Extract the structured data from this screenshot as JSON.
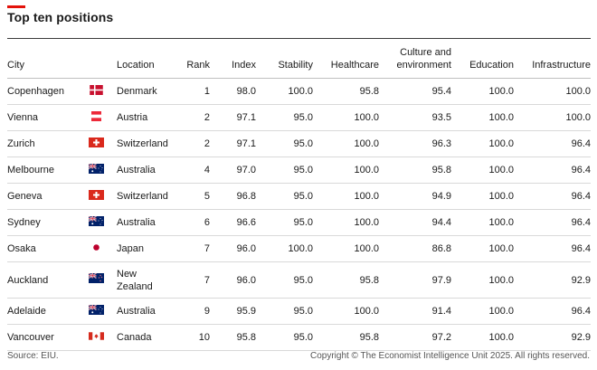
{
  "title": "Top ten positions",
  "columns": {
    "city": "City",
    "location": "Location",
    "rank": "Rank",
    "index": "Index",
    "stability": "Stability",
    "healthcare": "Healthcare",
    "culture_line1": "Culture and",
    "culture_line2": "environment",
    "education": "Education",
    "infrastructure": "Infrastructure"
  },
  "rows": [
    {
      "city": "Copenhagen",
      "flag": "denmark-flag-icon",
      "location": "Denmark",
      "rank": "1",
      "index": "98.0",
      "stability": "100.0",
      "healthcare": "95.8",
      "culture": "95.4",
      "education": "100.0",
      "infrastructure": "100.0"
    },
    {
      "city": "Vienna",
      "flag": "austria-flag-icon",
      "location": "Austria",
      "rank": "2",
      "index": "97.1",
      "stability": "95.0",
      "healthcare": "100.0",
      "culture": "93.5",
      "education": "100.0",
      "infrastructure": "100.0"
    },
    {
      "city": "Zurich",
      "flag": "switzerland-flag-icon",
      "location": "Switzerland",
      "rank": "2",
      "index": "97.1",
      "stability": "95.0",
      "healthcare": "100.0",
      "culture": "96.3",
      "education": "100.0",
      "infrastructure": "96.4"
    },
    {
      "city": "Melbourne",
      "flag": "australia-flag-icon",
      "location": "Australia",
      "rank": "4",
      "index": "97.0",
      "stability": "95.0",
      "healthcare": "100.0",
      "culture": "95.8",
      "education": "100.0",
      "infrastructure": "96.4"
    },
    {
      "city": "Geneva",
      "flag": "switzerland-flag-icon",
      "location": "Switzerland",
      "rank": "5",
      "index": "96.8",
      "stability": "95.0",
      "healthcare": "100.0",
      "culture": "94.9",
      "education": "100.0",
      "infrastructure": "96.4"
    },
    {
      "city": "Sydney",
      "flag": "australia-flag-icon",
      "location": "Australia",
      "rank": "6",
      "index": "96.6",
      "stability": "95.0",
      "healthcare": "100.0",
      "culture": "94.4",
      "education": "100.0",
      "infrastructure": "96.4"
    },
    {
      "city": "Osaka",
      "flag": "japan-flag-icon",
      "location": "Japan",
      "rank": "7",
      "index": "96.0",
      "stability": "100.0",
      "healthcare": "100.0",
      "culture": "86.8",
      "education": "100.0",
      "infrastructure": "96.4"
    },
    {
      "city": "Auckland",
      "flag": "new-zealand-flag-icon",
      "location_line1": "New",
      "location_line2": "Zealand",
      "rank": "7",
      "index": "96.0",
      "stability": "95.0",
      "healthcare": "95.8",
      "culture": "97.9",
      "education": "100.0",
      "infrastructure": "92.9"
    },
    {
      "city": "Adelaide",
      "flag": "australia-flag-icon",
      "location": "Australia",
      "rank": "9",
      "index": "95.9",
      "stability": "95.0",
      "healthcare": "100.0",
      "culture": "91.4",
      "education": "100.0",
      "infrastructure": "96.4"
    },
    {
      "city": "Vancouver",
      "flag": "canada-flag-icon",
      "location": "Canada",
      "rank": "10",
      "index": "95.8",
      "stability": "95.0",
      "healthcare": "95.8",
      "culture": "97.2",
      "education": "100.0",
      "infrastructure": "92.9"
    }
  ],
  "footer": {
    "source": "Source: EIU.",
    "copyright": "Copyright © The Economist Intelligence Unit 2025. All rights reserved."
  },
  "colors": {
    "accent_red": "#e3120b"
  }
}
